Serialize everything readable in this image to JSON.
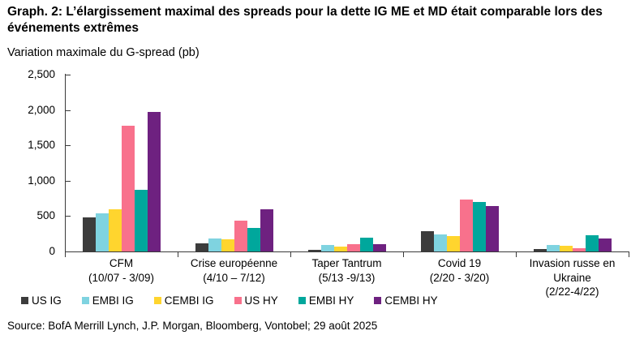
{
  "chart_data": {
    "type": "bar",
    "title": "Graph. 2: L’élargissement maximal des spreads pour la dette IG ME et MD était comparable lors des événements extrêmes",
    "subtitle": "Variation maximale du G-spread (pb)",
    "xlabel": "",
    "ylabel": "Variation maximale du G-spread (pb)",
    "ylim": [
      0,
      2500
    ],
    "ytick_interval": 500,
    "ytick_labels": [
      "0",
      "500",
      "1,000",
      "1,500",
      "2,000",
      "2,500"
    ],
    "grid": false,
    "legend_position": "bottom",
    "categories": [
      "CFM\n(10/07 - 3/09)",
      "Crise européenne\n(4/10 – 7/12)",
      "Taper Tantrum\n(5/13 -9/13)",
      "Covid 19\n(2/20 - 3/20)",
      "Invasion russe en\nUkraine\n(2/22-4/22)"
    ],
    "series": [
      {
        "name": "US IG",
        "color": "#3C3C3C",
        "values": [
          480,
          120,
          25,
          290,
          40
        ]
      },
      {
        "name": "EMBI IG",
        "color": "#7FD3E0",
        "values": [
          540,
          180,
          90,
          240,
          90
        ]
      },
      {
        "name": "CEMBI IG",
        "color": "#FFD52E",
        "values": [
          595,
          175,
          65,
          220,
          85
        ]
      },
      {
        "name": "US HY",
        "color": "#F8718C",
        "values": [
          1775,
          440,
          100,
          730,
          50
        ]
      },
      {
        "name": "EMBI HY",
        "color": "#00A79C",
        "values": [
          870,
          335,
          200,
          700,
          230
        ]
      },
      {
        "name": "CEMBI HY",
        "color": "#6E2180",
        "values": [
          1970,
          600,
          105,
          640,
          185
        ]
      }
    ],
    "axis_color": "#3a3a3a"
  },
  "source": "Source: BofA Merrill Lynch, J.P. Morgan, Bloomberg, Vontobel; 29 août 2025"
}
